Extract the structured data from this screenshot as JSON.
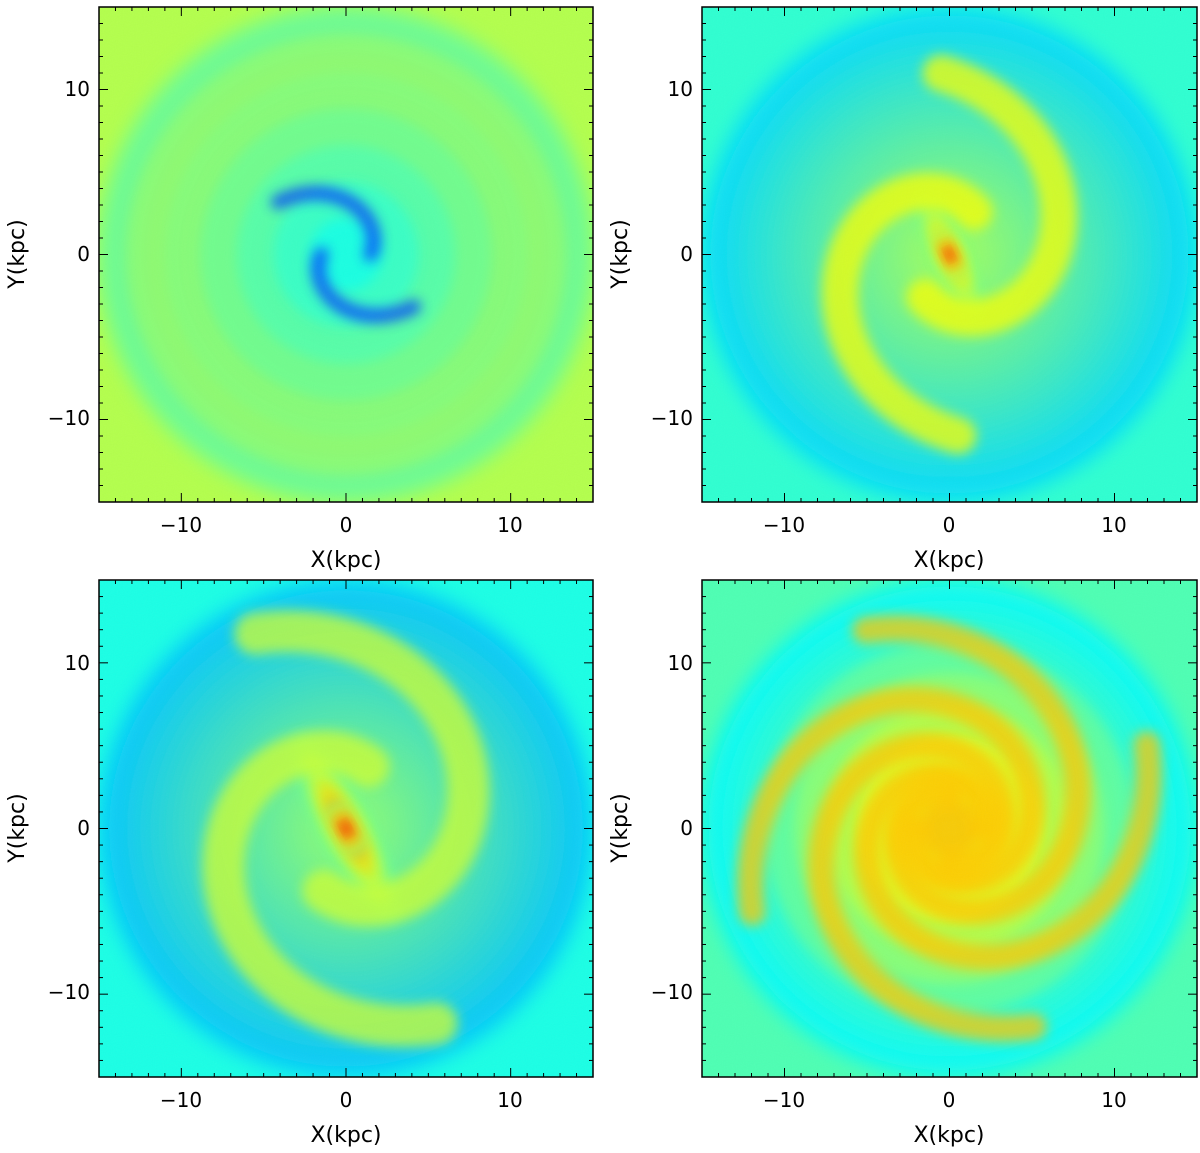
{
  "chart_data": [
    {
      "type": "heatmap",
      "panel": "top-left",
      "xlabel": "X(kpc)",
      "ylabel": "Y(kpc)",
      "xlim": [
        -15,
        15
      ],
      "ylim": [
        -15,
        15
      ],
      "xticks": [
        -10,
        0,
        10
      ],
      "yticks": [
        -10,
        0,
        10
      ],
      "xtick_labels": [
        "−10",
        "0",
        "10"
      ],
      "ytick_labels": [
        "−10",
        "0",
        "10"
      ],
      "colormap": "jet",
      "morphology": "centrally concentrated disk with two tightly wound inner arcs",
      "features": [
        {
          "kind": "core",
          "x": 0,
          "y": 0,
          "sx": 3.2,
          "sy": 3.2,
          "angle": 0,
          "level": 0.62
        },
        {
          "kind": "disk",
          "x": 0,
          "y": 0,
          "sx": 9.5,
          "sy": 9.5,
          "angle": 0,
          "level": 0.38
        },
        {
          "kind": "arm",
          "pitch": 0.5,
          "r_start": 1.5,
          "r_end": 5.2,
          "phase": 0,
          "width": 0.55,
          "level": 0.18
        },
        {
          "kind": "arm",
          "pitch": 0.5,
          "r_start": 1.5,
          "r_end": 5.2,
          "phase": 180,
          "width": 0.55,
          "level": 0.18
        }
      ],
      "background_level": 0.55
    },
    {
      "type": "heatmap",
      "panel": "top-right",
      "xlabel": "X(kpc)",
      "ylabel": "Y(kpc)",
      "xlim": [
        -15,
        15
      ],
      "ylim": [
        -15,
        15
      ],
      "xticks": [
        -10,
        0,
        10
      ],
      "yticks": [
        -10,
        0,
        10
      ],
      "xtick_labels": [
        "−10",
        "0",
        "10"
      ],
      "ytick_labels": [
        "−10",
        "0",
        "10"
      ],
      "colormap": "jet",
      "morphology": "barred spiral with two open arms",
      "features": [
        {
          "kind": "bar",
          "x": 0,
          "y": 0,
          "sx": 0.9,
          "sy": 3.2,
          "angle": -25,
          "level": 0.75
        },
        {
          "kind": "core",
          "x": 0,
          "y": 0,
          "sx": 0.7,
          "sy": 1.2,
          "angle": -25,
          "level": 0.9
        },
        {
          "kind": "arm",
          "pitch": 0.35,
          "r_start": 3,
          "r_end": 11,
          "phase": 60,
          "width": 1.4,
          "level": 0.62
        },
        {
          "kind": "arm",
          "pitch": 0.35,
          "r_start": 3,
          "r_end": 11,
          "phase": 240,
          "width": 1.4,
          "level": 0.62
        }
      ],
      "background_level": 0.42
    },
    {
      "type": "heatmap",
      "panel": "bottom-left",
      "xlabel": "X(kpc)",
      "ylabel": "Y(kpc)",
      "xlim": [
        -15,
        15
      ],
      "ylim": [
        -15,
        15
      ],
      "xticks": [
        -10,
        0,
        10
      ],
      "yticks": [
        -10,
        0,
        10
      ],
      "xtick_labels": [
        "−10",
        "0",
        "10"
      ],
      "ytick_labels": [
        "−10",
        "0",
        "10"
      ],
      "colormap": "jet",
      "morphology": "strong bar with open trailing arms",
      "features": [
        {
          "kind": "bar",
          "x": 0,
          "y": 0,
          "sx": 1.2,
          "sy": 4.5,
          "angle": -28,
          "level": 0.8
        },
        {
          "kind": "core",
          "x": 0,
          "y": 0,
          "sx": 0.8,
          "sy": 1.3,
          "angle": -28,
          "level": 0.92
        },
        {
          "kind": "arm",
          "pitch": 0.3,
          "r_start": 4,
          "r_end": 13,
          "phase": 70,
          "width": 1.6,
          "level": 0.58
        },
        {
          "kind": "arm",
          "pitch": 0.3,
          "r_start": 4,
          "r_end": 13,
          "phase": 250,
          "width": 1.6,
          "level": 0.58
        }
      ],
      "background_level": 0.4
    },
    {
      "type": "heatmap",
      "panel": "bottom-right",
      "xlabel": "X(kpc)",
      "ylabel": "Y(kpc)",
      "xlim": [
        -15,
        15
      ],
      "ylim": [
        -15,
        15
      ],
      "xticks": [
        -10,
        0,
        10
      ],
      "yticks": [
        -10,
        0,
        10
      ],
      "xtick_labels": [
        "−10",
        "0",
        "10"
      ],
      "ytick_labels": [
        "−10",
        "0",
        "10"
      ],
      "colormap": "jet",
      "morphology": "flocculent multi-armed spiral",
      "features": [
        {
          "kind": "core",
          "x": 0,
          "y": 0,
          "sx": 3.5,
          "sy": 3.5,
          "angle": 0,
          "level": 0.8
        },
        {
          "kind": "disk",
          "x": 0,
          "y": 0,
          "sx": 8,
          "sy": 8,
          "angle": 0,
          "level": 0.7
        },
        {
          "kind": "arm",
          "pitch": 0.28,
          "r_start": 2,
          "r_end": 13,
          "phase": 0,
          "width": 1.0,
          "level": 0.68
        },
        {
          "kind": "arm",
          "pitch": 0.28,
          "r_start": 2,
          "r_end": 13,
          "phase": 90,
          "width": 1.0,
          "level": 0.68
        },
        {
          "kind": "arm",
          "pitch": 0.28,
          "r_start": 2,
          "r_end": 13,
          "phase": 180,
          "width": 1.0,
          "level": 0.68
        },
        {
          "kind": "arm",
          "pitch": 0.28,
          "r_start": 2,
          "r_end": 13,
          "phase": 270,
          "width": 1.0,
          "level": 0.68
        }
      ],
      "background_level": 0.45
    }
  ]
}
